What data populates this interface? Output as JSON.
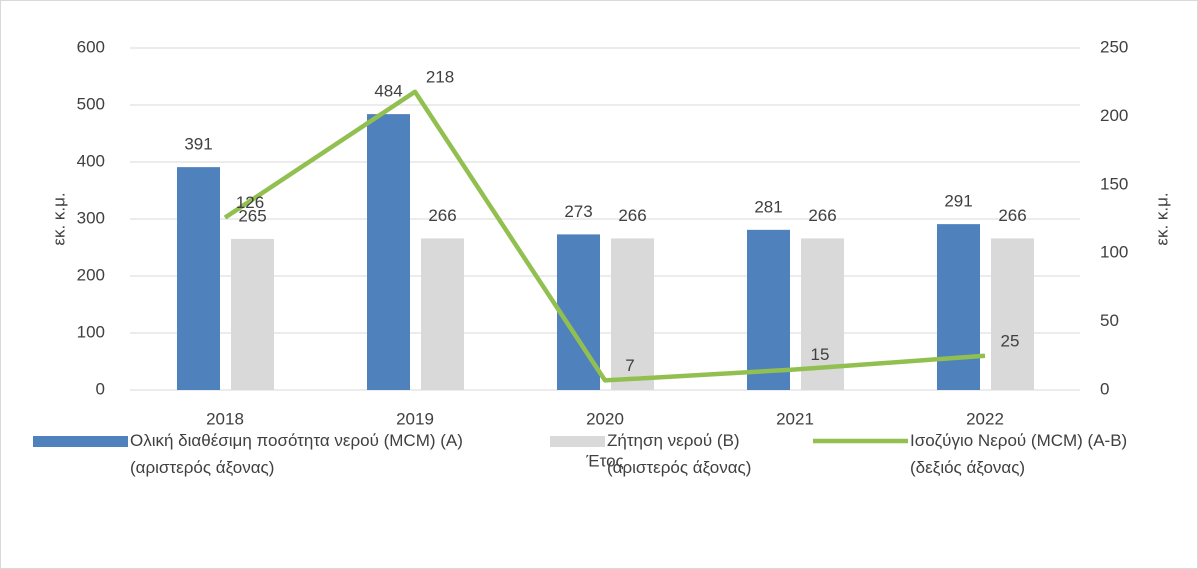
{
  "chart_data": {
    "type": "bar-line",
    "x_label": "Έτος",
    "y_label": "εκ. κ.μ.",
    "y2_label": "εκ. κ.μ.",
    "categories": [
      "2018",
      "2019",
      "2020",
      "2021",
      "2022"
    ],
    "ylim": [
      0,
      600
    ],
    "yticks": [
      0,
      100,
      200,
      300,
      400,
      500,
      600
    ],
    "y2lim": [
      0,
      250
    ],
    "y2ticks": [
      0,
      50,
      100,
      150,
      200,
      250
    ],
    "series": [
      {
        "name": "Ολική διαθέσιμη ποσότητα νερού (MCM) (A)\n(αριστερός άξονας)",
        "type": "bar",
        "color": "#4f81bd",
        "values": [
          391,
          484,
          273,
          281,
          291
        ]
      },
      {
        "name": "Ζήτηση νερού (B)\n(αριστερός άξονας)",
        "type": "bar",
        "color": "#d9d9d9",
        "values": [
          265,
          266,
          266,
          266,
          266
        ]
      },
      {
        "name": "Ισοζύγιο Νερού (MCM) (A-B)\n(δεξιός άξονας)",
        "type": "line",
        "axis": "y2",
        "color": "#92c050",
        "values": [
          126,
          218,
          7,
          15,
          25
        ]
      }
    ]
  }
}
